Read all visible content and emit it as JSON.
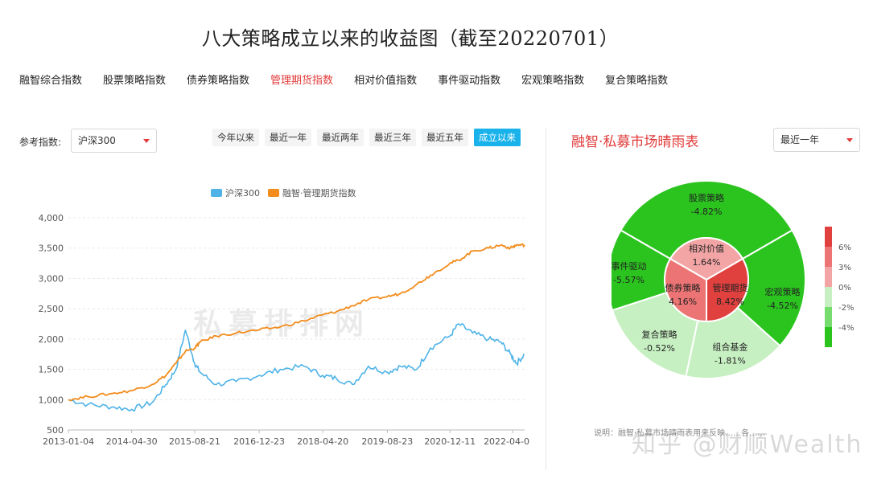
{
  "title": "八大策略成立以来的收益图（截至20220701）",
  "tabs": [
    "融智综合指数",
    "股票策略指数",
    "债券策略指数",
    "管理期货指数",
    "相对价值指数",
    "事件驱动指数",
    "宏观策略指数",
    "复合策略指数"
  ],
  "active_tab_index": 3,
  "reference": {
    "label": "参考指数:",
    "value": "沪深300"
  },
  "periods": [
    "今年以来",
    "最近一年",
    "最近两年",
    "最近三年",
    "最近五年",
    "成立以来"
  ],
  "active_period_index": 5,
  "colors": {
    "accent_red": "#e23b3b",
    "active_blue": "#19b2ea",
    "hs300": "#4fb3e8",
    "mf": "#f28c1c"
  },
  "watermark_chart": "私募排排网",
  "chart_data": [
    {
      "type": "line",
      "x": [
        "2013-01-04",
        "2013-06-01",
        "2013-12-01",
        "2014-04-30",
        "2014-10-01",
        "2015-01-15",
        "2015-04-01",
        "2015-06-12",
        "2015-08-21",
        "2015-10-01",
        "2016-02-01",
        "2016-07-01",
        "2016-12-23",
        "2017-06-01",
        "2017-12-01",
        "2018-04-20",
        "2018-08-01",
        "2018-12-01",
        "2019-04-01",
        "2019-08-23",
        "2019-12-01",
        "2020-04-01",
        "2020-07-15",
        "2020-12-11",
        "2021-02-15",
        "2021-06-01",
        "2021-10-01",
        "2022-01-01",
        "2022-03-15",
        "2022-05-01",
        "2022-07-01"
      ],
      "x_ticks": [
        "2013-01-04",
        "2014-04-30",
        "2015-08-21",
        "2016-12-23",
        "2018-04-20",
        "2019-08-23",
        "2020-12-11",
        "2022-04-0"
      ],
      "y_ticks": [
        "500",
        "1,000",
        "1,500",
        "2,000",
        "2,500",
        "3,000",
        "3,500",
        "4,000"
      ],
      "ylim": [
        500,
        4000
      ],
      "legend": [
        "沪深300",
        "融智·管理期货指数"
      ],
      "legend_position": "top",
      "series": [
        {
          "name": "沪深300",
          "values": [
            1000,
            920,
            880,
            840,
            950,
            1250,
            1500,
            2150,
            1600,
            1450,
            1250,
            1300,
            1400,
            1500,
            1550,
            1400,
            1350,
            1250,
            1550,
            1450,
            1550,
            1500,
            1850,
            2050,
            2250,
            2100,
            2000,
            1950,
            1750,
            1600,
            1750
          ]
        },
        {
          "name": "融智·管理期货指数",
          "values": [
            1000,
            1050,
            1100,
            1150,
            1250,
            1400,
            1600,
            1800,
            1850,
            1950,
            2050,
            2100,
            2150,
            2200,
            2300,
            2400,
            2450,
            2550,
            2650,
            2700,
            2750,
            2900,
            3050,
            3250,
            3300,
            3450,
            3500,
            3550,
            3500,
            3550,
            3550
          ]
        }
      ]
    },
    {
      "type": "pie",
      "title": "融智·私募市场晴雨表",
      "period_selector": "最近一年",
      "inner": [
        {
          "name": "相对价值",
          "value": "1.64%"
        },
        {
          "name": "管理期货",
          "value": "8.42%"
        },
        {
          "name": "债券策略",
          "value": "4.16%"
        }
      ],
      "outer": [
        {
          "name": "股票策略",
          "value": "-4.82%"
        },
        {
          "name": "宏观策略",
          "value": "-4.52%"
        },
        {
          "name": "组合基金",
          "value": "-1.81%"
        },
        {
          "name": "复合策略",
          "value": "-0.52%"
        },
        {
          "name": "事件驱动",
          "value": "-5.57%"
        }
      ],
      "scale_labels": [
        "6%",
        "3%",
        "0%",
        "-2%",
        "-4%"
      ]
    }
  ],
  "note": "说明：融智·私募市场晴雨表用来反映……各……",
  "watermark": "知乎 @财顺Wealth"
}
